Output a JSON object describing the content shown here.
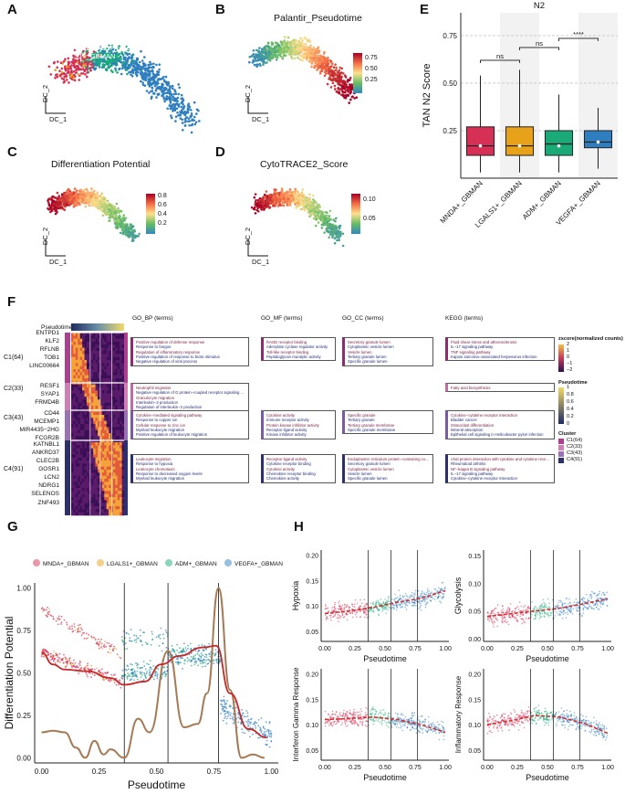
{
  "panel_labels": {
    "A": "A",
    "B": "B",
    "C": "C",
    "D": "D",
    "E": "E",
    "F": "F",
    "G": "G",
    "H": "H"
  },
  "umap": {
    "axis_x": "DC_1",
    "axis_y": "DC_2",
    "A_labels": [
      "ADM+_GBMAN",
      "MNDA+_GBMAN",
      "VEGFA+_GBMAN",
      "LGALS1+_GBMAN"
    ],
    "B": {
      "title": "Palantir_Pseudotime",
      "ticks": [
        "0.75",
        "0.50",
        "0.25"
      ]
    },
    "C": {
      "title": "Differentiation Potential",
      "ticks": [
        "0.8",
        "0.6",
        "0.4",
        "0.2"
      ]
    },
    "D": {
      "title": "CytoTRACE2_Score",
      "ticks": [
        "0.10",
        "0.05"
      ]
    }
  },
  "colors": {
    "mnda": "#d63056",
    "lgals1": "#e8a21a",
    "adm": "#1aaa78",
    "vegfa": "#2f7fc0"
  },
  "chart_data": [
    {
      "type": "box",
      "panel": "E",
      "title": "N2",
      "ylabel": "TAN N2 Score",
      "categories": [
        "MNDA+_GBMAN",
        "LGALS1+_GBMAN",
        "ADM+_GBMAN",
        "VEGFA+_GBMAN"
      ],
      "box": [
        {
          "low": 0.03,
          "q1": 0.12,
          "median": 0.17,
          "q3": 0.27,
          "high": 0.54,
          "mean": 0.17
        },
        {
          "low": 0.03,
          "q1": 0.12,
          "median": 0.17,
          "q3": 0.27,
          "high": 0.57,
          "mean": 0.17
        },
        {
          "low": 0.03,
          "q1": 0.12,
          "median": 0.18,
          "q3": 0.25,
          "high": 0.44,
          "mean": 0.17
        },
        {
          "low": 0.05,
          "q1": 0.16,
          "median": 0.19,
          "q3": 0.25,
          "high": 0.37,
          "mean": 0.19
        }
      ],
      "yticks": [
        "0.25",
        "0.50",
        "0.75"
      ],
      "ylim": [
        0.0,
        0.87
      ],
      "signif": [
        {
          "a": 0,
          "b": 1,
          "label": "ns"
        },
        {
          "a": 1,
          "b": 2,
          "label": "ns"
        },
        {
          "a": 2,
          "b": 3,
          "label": "****"
        }
      ]
    },
    {
      "type": "heatmap",
      "panel": "F",
      "column_titles": [
        "Pseudotime",
        "GO_BP (terms)",
        "GO_MF (terms)",
        "GO_CC (terms)",
        "KEGG (terms)"
      ],
      "clusters": [
        "C1(64)",
        "C2(33)",
        "C3(43)",
        "C4(91)"
      ],
      "genes": [
        "ENTPD1",
        "KLF2",
        "RFLNB",
        "TOB1",
        "LINC00664",
        "RESF1",
        "SYAP1",
        "FRMD4B",
        "CD44",
        "MCEMP1",
        "MIR4435−2HG",
        "FCGR2B",
        "KATNBL1",
        "ANKRD37",
        "CLEC2B",
        "GOSR1",
        "LCN2",
        "NDRG1",
        "SELENOS",
        "ZNF493"
      ],
      "go_bp": [
        [
          "Positive regulation of defense response",
          "Response to fungus",
          "Regulation of inflammatory response",
          "Positive regulation of response to biotic stimulus",
          "Negative regulation of viral process"
        ],
        [
          "Neutrophil migration",
          "Negative regulation of G protein−coupled receptor signaling pathway",
          "Granulocyte migration",
          "Interleukin−2 production",
          "Regulation of interleukin−2 production"
        ],
        [
          "Cytokine−mediated signaling pathway",
          "Response to copper ion",
          "Cellular response to zinc ion",
          "Myeloid leukocyte migration",
          "Positive regulation of leukocyte migration"
        ],
        [
          "Leukocyte migration",
          "Response to hypoxia",
          "Leukocyte chemotaxis",
          "Response to decreased oxygen levels",
          "Myeloid leukocyte migration"
        ]
      ],
      "go_mf": [
        [
          "RAGE receptor binding",
          "Adenylate cyclase regulator activity",
          "Toll-like receptor binding",
          "Peptidoglycan muralytic activity"
        ],
        [
          "Cytokine activity",
          "Immune receptor activity",
          "Protein kinase inhibitor activity",
          "Receptor ligand activity",
          "Kinase inhibitor activity"
        ],
        [
          "Receptor ligand activity",
          "Cytokine receptor binding",
          "Cytokine activity",
          "Chemokine receptor binding",
          "Chemokine activity"
        ]
      ],
      "go_cc": [
        [
          "Secretory granule lumen",
          "Cytoplasmic vesicle lumen",
          "Vesicle lumen",
          "Tertiary granule lumen",
          "Specific granule lumen"
        ],
        [
          "Specific granule",
          "Tertiary granule",
          "Tertiary granule membrane",
          "Specific granule membrane"
        ],
        [
          "Endoplasmic reticulum protein−containing complex",
          "Secretory granule lumen",
          "Cytoplasmic vesicle lumen",
          "Vesicle lumen",
          "Specific granule lumen"
        ]
      ],
      "kegg": [
        [
          "Fluid shear stress and atherosclerosis",
          "IL−17 signaling pathway",
          "TNF signaling pathway",
          "Kaposi sarcoma−associated herpesvirus infection"
        ],
        [
          "Fatty acid biosynthesis"
        ],
        [
          "Cytokine−cytokine receptor interaction",
          "Bladder cancer",
          "Osteoclast differentiation",
          "Mineral absorption",
          "Epithelial cell signaling in Helicobacter pylori infection"
        ],
        [
          "Viral protein interaction with cytokine and cytokine receptor",
          "Rheumatoid arthritis",
          "NF−kappa B signaling pathway",
          "IL−17 signaling pathway",
          "Cytokine−cytokine receptor interaction"
        ]
      ],
      "legend": {
        "z_title": "zscore(normalized counts)",
        "z_ticks": [
          "2",
          "1",
          "0",
          "−1",
          "−2"
        ],
        "p_title": "Pseudotime",
        "p_ticks": [
          "1",
          "0.8",
          "0.6",
          "0.4",
          "0.2",
          "0"
        ],
        "c_title": "Cluster",
        "c_items": [
          "C1(64)",
          "C2(33)",
          "C3(43)",
          "C4(91)"
        ]
      }
    },
    {
      "type": "scatter+line",
      "panel": "G",
      "xlabel": "Pseudotime",
      "ylabel": "Differentiation Potential",
      "xlim": [
        0,
        1
      ],
      "ylim": [
        0,
        1
      ],
      "xticks": [
        "0.00",
        "0.25",
        "0.50",
        "0.75",
        "1.00"
      ],
      "yticks": [
        "0.00",
        "0.25",
        "0.50",
        "0.75",
        "1.00"
      ],
      "legend": [
        "MNDA+_GBMAN",
        "LGALS1+_GBMAN",
        "ADM+_GBMAN",
        "VEGFA+_GBMAN"
      ],
      "vlines": [
        0.36,
        0.55,
        0.77
      ],
      "red_trend": {
        "x": [
          0.0,
          0.05,
          0.1,
          0.2,
          0.3,
          0.36,
          0.45,
          0.52,
          0.6,
          0.7,
          0.76,
          0.82,
          0.9,
          0.98
        ],
        "y": [
          0.62,
          0.55,
          0.52,
          0.51,
          0.47,
          0.43,
          0.45,
          0.55,
          0.6,
          0.65,
          0.66,
          0.38,
          0.17,
          0.12
        ]
      },
      "brown_curve": {
        "x": [
          0.0,
          0.05,
          0.1,
          0.15,
          0.19,
          0.23,
          0.27,
          0.3,
          0.36,
          0.42,
          0.47,
          0.55,
          0.62,
          0.68,
          0.72,
          0.77,
          0.82,
          0.87,
          0.92,
          0.97
        ],
        "y": [
          0.15,
          0.16,
          0.15,
          0.06,
          0.0,
          0.1,
          0.02,
          0.05,
          0.0,
          0.23,
          0.15,
          0.63,
          0.18,
          0.2,
          0.38,
          1.0,
          0.4,
          0.0,
          0.02,
          0.0
        ]
      }
    },
    {
      "type": "scatter+line",
      "panel": "H",
      "xlabel": "Pseudotime",
      "xticks": [
        "0.00",
        "0.25",
        "0.50",
        "0.75",
        "1.00"
      ],
      "vlines": [
        0.36,
        0.55,
        0.77
      ],
      "subplots": [
        {
          "ylabel": "Hypoxia",
          "yticks": [
            "0.05",
            "0.10",
            "0.15",
            "0.20"
          ],
          "ylim": [
            0.03,
            0.21
          ],
          "trend": [
            0.085,
            0.09,
            0.097,
            0.107,
            0.115,
            0.13
          ]
        },
        {
          "ylabel": "Glycolysis",
          "yticks": [
            "0.00",
            "0.05",
            "0.10",
            "0.15"
          ],
          "ylim": [
            -0.005,
            0.16
          ],
          "trend": [
            0.04,
            0.045,
            0.05,
            0.055,
            0.063,
            0.072
          ]
        },
        {
          "ylabel": "Interferon Gamma Response",
          "yticks": [
            "0.05",
            "0.10",
            "0.15",
            "0.20"
          ],
          "ylim": [
            0.03,
            0.21
          ],
          "trend": [
            0.11,
            0.112,
            0.115,
            0.11,
            0.1,
            0.085
          ]
        },
        {
          "ylabel": "Inflammatory Response",
          "yticks": [
            "0.05",
            "0.10",
            "0.15",
            "0.20"
          ],
          "ylim": [
            0.03,
            0.21
          ],
          "trend": [
            0.1,
            0.108,
            0.118,
            0.115,
            0.103,
            0.083
          ]
        }
      ]
    }
  ]
}
